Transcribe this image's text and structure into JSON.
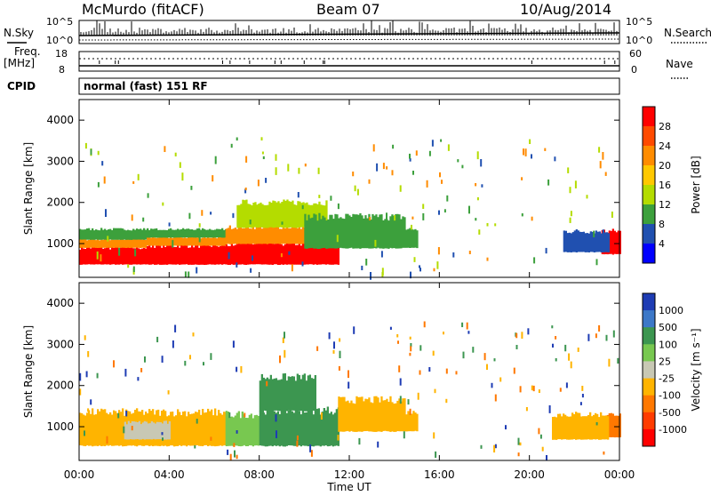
{
  "header": {
    "station": "McMurdo (fitACF)",
    "beam": "Beam 07",
    "date": "10/Aug/2014"
  },
  "top_panels": {
    "nsky_label": "N.Sky",
    "nsky_ticks": [
      "10^5",
      "10^0"
    ],
    "nsearch_label": "N.Search",
    "nsearch_ticks": [
      "10^5",
      "10^0"
    ],
    "freq_label": "Freq.",
    "freq_unit": "[MHz]",
    "freq_ticks": [
      "18",
      "8"
    ],
    "nave_label": "Nave",
    "nave_ticks": [
      "60",
      "0"
    ],
    "cpid_label": "CPID",
    "cpid_text": "normal (fast) 151 RF"
  },
  "axes": {
    "ylabel": "Slant Range [km]",
    "yticks": [
      "4000",
      "3000",
      "2000",
      "1000"
    ],
    "xticks": [
      "00:00",
      "04:00",
      "08:00",
      "12:00",
      "16:00",
      "20:00",
      "00:00"
    ],
    "xlabel": "Time UT"
  },
  "power_scale": {
    "label": "Power [dB]",
    "ticks": [
      "28",
      "24",
      "20",
      "16",
      "12",
      "8",
      "4"
    ],
    "colors": [
      "#ff0000",
      "#ff4a00",
      "#ff8c00",
      "#ffc800",
      "#b4dc00",
      "#3ca03c",
      "#2050b0",
      "#0000ff"
    ]
  },
  "velocity_scale": {
    "label": "Velocity [m s⁻¹]",
    "ticks": [
      "1000",
      "500",
      "100",
      "25",
      "-25",
      "-100",
      "-500",
      "-1000"
    ],
    "colors": [
      "#1e3cb4",
      "#3c78c8",
      "#3c9650",
      "#78c850",
      "#c8c8b4",
      "#ffb400",
      "#ff7800",
      "#ff3c00",
      "#ff0000"
    ]
  },
  "chart_data": [
    {
      "type": "heatmap",
      "name": "Power",
      "xlabel": "Time UT",
      "ylabel": "Slant Range [km]",
      "xlim": [
        0,
        24
      ],
      "ylim": [
        180,
        4500
      ],
      "colorbar": "Power [dB]",
      "regions": [
        {
          "t0": 0.0,
          "t1": 3.0,
          "r0": 500,
          "r1": 900,
          "v": 28
        },
        {
          "t0": 0.0,
          "t1": 3.0,
          "r0": 900,
          "r1": 1100,
          "v": 20
        },
        {
          "t0": 0.0,
          "t1": 3.0,
          "r0": 1100,
          "r1": 1350,
          "v": 8
        },
        {
          "t0": 3.0,
          "t1": 6.5,
          "r0": 500,
          "r1": 950,
          "v": 28
        },
        {
          "t0": 3.0,
          "t1": 6.5,
          "r0": 950,
          "r1": 1150,
          "v": 20
        },
        {
          "t0": 3.0,
          "t1": 6.5,
          "r0": 1150,
          "r1": 1350,
          "v": 8
        },
        {
          "t0": 6.5,
          "t1": 11.5,
          "r0": 500,
          "r1": 1000,
          "v": 28
        },
        {
          "t0": 6.5,
          "t1": 11.5,
          "r0": 1000,
          "r1": 1400,
          "v": 20
        },
        {
          "t0": 7.0,
          "t1": 11.0,
          "r0": 1400,
          "r1": 2000,
          "v": 12
        },
        {
          "t0": 10.0,
          "t1": 14.5,
          "r0": 900,
          "r1": 1650,
          "v": 8
        },
        {
          "t0": 14.5,
          "t1": 15.0,
          "r0": 900,
          "r1": 1350,
          "v": 8
        },
        {
          "t0": 23.2,
          "t1": 24.0,
          "r0": 750,
          "r1": 1300,
          "v": 28
        },
        {
          "t0": 21.5,
          "t1": 23.5,
          "r0": 800,
          "r1": 1300,
          "v": 4
        }
      ]
    },
    {
      "type": "heatmap",
      "name": "Velocity",
      "xlabel": "Time UT",
      "ylabel": "Slant Range [km]",
      "xlim": [
        0,
        24
      ],
      "ylim": [
        180,
        4500
      ],
      "colorbar": "Velocity [m s⁻¹]",
      "regions": [
        {
          "t0": 0.0,
          "t1": 6.5,
          "r0": 550,
          "r1": 1350,
          "v": -100
        },
        {
          "t0": 2.0,
          "t1": 4.0,
          "r0": 700,
          "r1": 1100,
          "v": 0
        },
        {
          "t0": 6.5,
          "t1": 8.0,
          "r0": 550,
          "r1": 1300,
          "v": 50
        },
        {
          "t0": 8.0,
          "t1": 11.5,
          "r0": 550,
          "r1": 1400,
          "v": 200
        },
        {
          "t0": 8.0,
          "t1": 10.5,
          "r0": 1400,
          "r1": 2200,
          "v": 200
        },
        {
          "t0": 11.5,
          "t1": 14.5,
          "r0": 900,
          "r1": 1650,
          "v": -100
        },
        {
          "t0": 14.5,
          "t1": 15.0,
          "r0": 900,
          "r1": 1350,
          "v": -100
        },
        {
          "t0": 23.2,
          "t1": 24.0,
          "r0": 750,
          "r1": 1300,
          "v": -500
        },
        {
          "t0": 21.0,
          "t1": 23.5,
          "r0": 700,
          "r1": 1300,
          "v": -100
        }
      ]
    }
  ]
}
